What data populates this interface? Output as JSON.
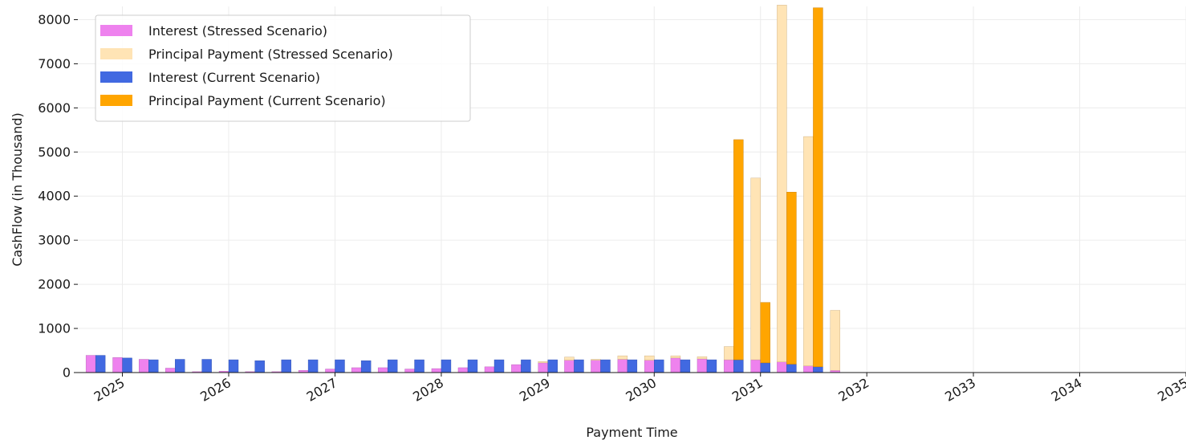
{
  "chart_data": {
    "type": "bar",
    "title": "",
    "xlabel": "Payment Time",
    "ylabel": "CashFlow (in Thousand)",
    "ylim": [
      0,
      8300
    ],
    "yticks": [
      0,
      1000,
      2000,
      3000,
      4000,
      5000,
      6000,
      7000,
      8000
    ],
    "ytick_labels": [
      "0",
      "1000",
      "2000",
      "3000",
      "4000",
      "5000",
      "6000",
      "7000",
      "8000"
    ],
    "xlim": [
      "2024-08-01",
      "2035-01-01"
    ],
    "xticks": [
      "2025-01-01",
      "2026-01-01",
      "2027-01-01",
      "2028-01-01",
      "2029-01-01",
      "2030-01-01",
      "2031-01-01",
      "2032-01-01",
      "2033-01-01",
      "2034-01-01",
      "2035-01-01"
    ],
    "xtick_labels": [
      "2025",
      "2026",
      "2027",
      "2028",
      "2029",
      "2030",
      "2031",
      "2032",
      "2033",
      "2034",
      "2035"
    ],
    "grid": true,
    "legend_position": "top-left",
    "colors": {
      "interest_stressed": "#ee82ee",
      "principal_stressed": "#ffe4b5",
      "interest_current": "#4169e1",
      "principal_current": "#ffa500"
    },
    "payment_dates": [
      "2024-10-01",
      "2025-01-01",
      "2025-04-01",
      "2025-07-01",
      "2025-10-01",
      "2026-01-01",
      "2026-04-01",
      "2026-07-01",
      "2026-10-01",
      "2027-01-01",
      "2027-04-01",
      "2027-07-01",
      "2027-10-01",
      "2028-01-01",
      "2028-04-01",
      "2028-07-01",
      "2028-10-01",
      "2029-01-01",
      "2029-04-01",
      "2029-07-01",
      "2029-10-01",
      "2030-01-01",
      "2030-04-01",
      "2030-07-01",
      "2030-10-01",
      "2031-01-01",
      "2031-04-01",
      "2031-07-01",
      "2031-10-01"
    ],
    "series": [
      {
        "name": "Interest (Stressed Scenario)",
        "scenario": "stressed",
        "values": [
          390,
          340,
          300,
          100,
          20,
          30,
          20,
          20,
          50,
          80,
          110,
          110,
          80,
          90,
          110,
          130,
          180,
          220,
          280,
          280,
          300,
          280,
          330,
          310,
          290,
          290,
          240,
          150,
          50
        ]
      },
      {
        "name": "Principal Payment (Stressed Scenario)",
        "scenario": "stressed",
        "values": [
          0,
          0,
          0,
          0,
          0,
          0,
          0,
          0,
          0,
          0,
          0,
          0,
          0,
          0,
          0,
          0,
          0,
          30,
          70,
          20,
          80,
          100,
          50,
          50,
          300,
          4120,
          8090,
          5200,
          1360
        ]
      },
      {
        "name": "Interest (Current Scenario)",
        "scenario": "current",
        "values": [
          390,
          330,
          290,
          300,
          300,
          290,
          270,
          290,
          290,
          290,
          270,
          290,
          290,
          290,
          290,
          290,
          290,
          290,
          290,
          290,
          290,
          290,
          290,
          290,
          290,
          220,
          190,
          130,
          0
        ]
      },
      {
        "name": "Principal Payment (Current Scenario)",
        "scenario": "current",
        "values": [
          0,
          0,
          0,
          0,
          0,
          0,
          0,
          0,
          0,
          0,
          0,
          0,
          0,
          0,
          0,
          0,
          0,
          0,
          0,
          0,
          0,
          0,
          0,
          0,
          4990,
          1370,
          3900,
          8140,
          0
        ]
      }
    ]
  }
}
